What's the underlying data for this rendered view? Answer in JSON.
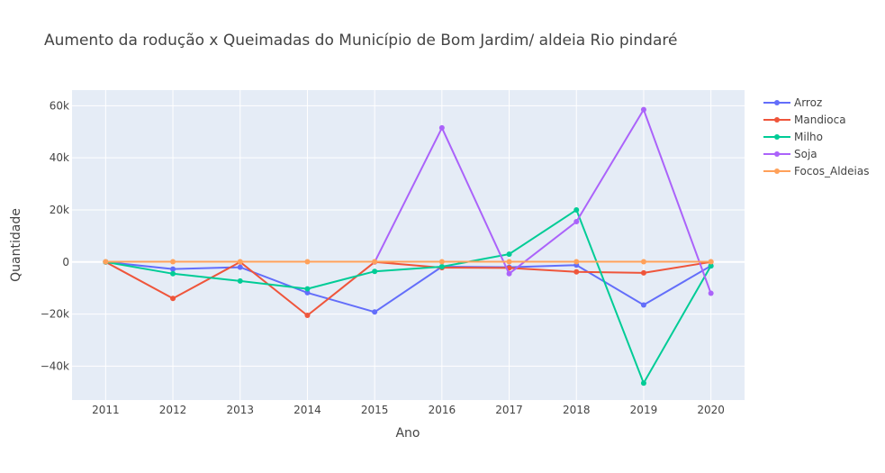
{
  "chart_data": {
    "type": "line",
    "title": "Aumento da rodução x Queimadas do Município de Bom Jardim/ aldeia Rio pindaré",
    "xlabel": "Ano",
    "ylabel": "Quantidade",
    "x": [
      2011,
      2012,
      2013,
      2014,
      2015,
      2016,
      2017,
      2018,
      2019,
      2020
    ],
    "xlim": [
      2010.5,
      2020.5
    ],
    "ylim": [
      -53000,
      66000
    ],
    "yticks": [
      -40000,
      -20000,
      0,
      20000,
      40000,
      60000
    ],
    "ytick_labels": [
      "−40k",
      "−20k",
      "0",
      "20k",
      "40k",
      "60k"
    ],
    "grid": true,
    "legend_position": "top-right",
    "background": "#e5ecf6",
    "series": [
      {
        "name": "Arroz",
        "color": "#636efa",
        "values": [
          0,
          -2700,
          -2000,
          -11800,
          -19200,
          -1800,
          -2000,
          -1200,
          -16500,
          -1500
        ]
      },
      {
        "name": "Mandioca",
        "color": "#ef553b",
        "values": [
          0,
          -14000,
          0,
          -20500,
          0,
          -2200,
          -2300,
          -3800,
          -4200,
          0
        ]
      },
      {
        "name": "Milho",
        "color": "#00cc96",
        "values": [
          0,
          -4500,
          -7300,
          -10300,
          -3600,
          -1800,
          3000,
          20000,
          -46500,
          -1500
        ]
      },
      {
        "name": "Soja",
        "color": "#ab63fa",
        "values": [
          null,
          null,
          null,
          null,
          0,
          51500,
          -4500,
          15500,
          58500,
          -12000
        ]
      },
      {
        "name": "Focos_Aldeias",
        "color": "#ffa15a",
        "values": [
          100,
          100,
          100,
          100,
          100,
          100,
          100,
          100,
          100,
          100
        ]
      }
    ]
  }
}
